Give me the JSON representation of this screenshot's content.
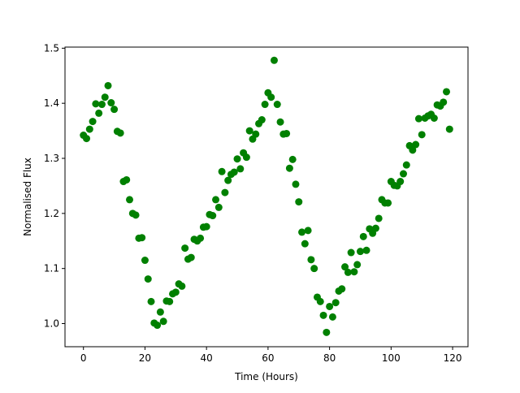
{
  "chart_data": {
    "type": "scatter",
    "xlabel": "Time (Hours)",
    "ylabel": "Normalised Flux",
    "xlim": [
      -6,
      125
    ],
    "ylim": [
      0.958,
      1.502
    ],
    "xticks": [
      0,
      20,
      40,
      60,
      80,
      100,
      120
    ],
    "xtick_labels": [
      "0",
      "20",
      "40",
      "60",
      "80",
      "100",
      "120"
    ],
    "yticks": [
      1.0,
      1.1,
      1.2,
      1.3,
      1.4,
      1.5
    ],
    "ytick_labels": [
      "1.0",
      "1.1",
      "1.2",
      "1.3",
      "1.4",
      "1.5"
    ],
    "grid": false,
    "marker_color": "#008000",
    "x": [
      0,
      1,
      2,
      3,
      4,
      5,
      6,
      7,
      8,
      9,
      10,
      11,
      12,
      13,
      14,
      15,
      16,
      17,
      18,
      19,
      20,
      21,
      22,
      23,
      24,
      25,
      26,
      27,
      28,
      29,
      30,
      31,
      32,
      33,
      34,
      35,
      36,
      37,
      38,
      39,
      40,
      41,
      42,
      43,
      44,
      45,
      46,
      47,
      48,
      49,
      50,
      51,
      52,
      53,
      54,
      55,
      56,
      57,
      58,
      59,
      60,
      61,
      62,
      63,
      64,
      65,
      66,
      67,
      68,
      69,
      70,
      71,
      72,
      73,
      74,
      75,
      76,
      77,
      78,
      79,
      80,
      81,
      82,
      83,
      84,
      85,
      86,
      87,
      88,
      89,
      90,
      91,
      92,
      93,
      94,
      95,
      96,
      97,
      98,
      99,
      100,
      101,
      102,
      103,
      104,
      105,
      106,
      107,
      108,
      109,
      110,
      111,
      112,
      113,
      114,
      115,
      116,
      117,
      118,
      119
    ],
    "y": [
      1.342,
      1.336,
      1.353,
      1.367,
      1.399,
      1.382,
      1.398,
      1.411,
      1.432,
      1.401,
      1.389,
      1.349,
      1.346,
      1.258,
      1.261,
      1.225,
      1.2,
      1.197,
      1.155,
      1.156,
      1.115,
      1.081,
      1.04,
      1.001,
      0.997,
      1.021,
      1.004,
      1.041,
      1.04,
      1.054,
      1.057,
      1.072,
      1.068,
      1.137,
      1.117,
      1.12,
      1.153,
      1.15,
      1.155,
      1.175,
      1.176,
      1.198,
      1.196,
      1.225,
      1.211,
      1.276,
      1.238,
      1.26,
      1.271,
      1.275,
      1.299,
      1.281,
      1.31,
      1.302,
      1.35,
      1.335,
      1.344,
      1.363,
      1.37,
      1.398,
      1.419,
      1.411,
      1.478,
      1.398,
      1.366,
      1.344,
      1.345,
      1.282,
      1.298,
      1.253,
      1.221,
      1.166,
      1.145,
      1.169,
      1.116,
      1.1,
      1.048,
      1.04,
      1.015,
      0.984,
      1.031,
      1.012,
      1.038,
      1.059,
      1.063,
      1.103,
      1.093,
      1.129,
      1.094,
      1.107,
      1.131,
      1.158,
      1.133,
      1.172,
      1.164,
      1.173,
      1.191,
      1.225,
      1.219,
      1.219,
      1.258,
      1.251,
      1.25,
      1.258,
      1.272,
      1.288,
      1.323,
      1.315,
      1.325,
      1.372,
      1.343,
      1.373,
      1.377,
      1.38,
      1.373,
      1.397,
      1.395,
      1.402,
      1.421,
      1.353
    ]
  }
}
